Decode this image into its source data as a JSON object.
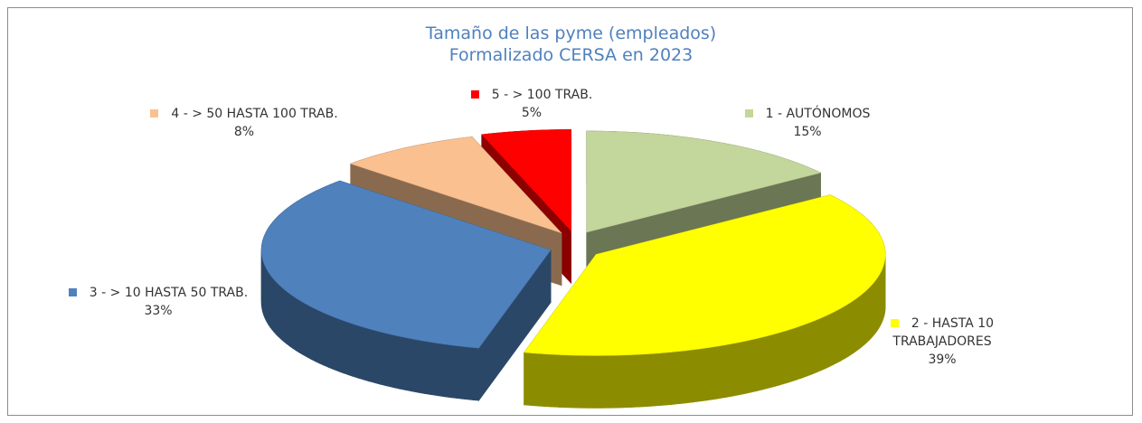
{
  "chart_data": {
    "type": "pie3d",
    "title": "Tamaño de las pyme (empleados)",
    "subtitle": "Formalizado CERSA en 2023",
    "categories": [
      "1 - AUTÓNOMOS",
      "2 - HASTA 10 TRABAJADORES",
      "3 - > 10 HASTA 50 TRAB.",
      "4 - > 50 HASTA 100 TRAB.",
      "5 - > 100 TRAB."
    ],
    "values": [
      15,
      39,
      33,
      8,
      5
    ],
    "value_labels": [
      "15%",
      "39%",
      "33%",
      "8%",
      "5%"
    ],
    "colors": [
      "#c3d69b",
      "#ffff00",
      "#4f81bd",
      "#fac090",
      "#ff0000"
    ]
  }
}
